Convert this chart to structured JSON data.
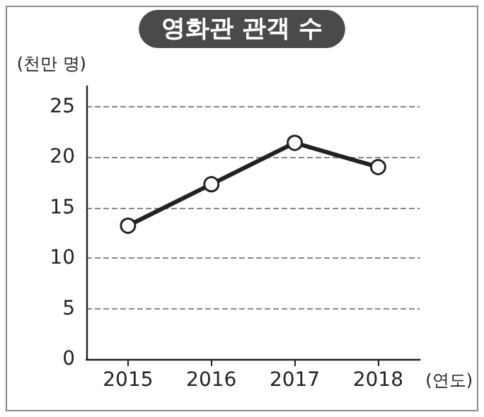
{
  "chart_data": {
    "type": "line",
    "title": "영화관 관객 수",
    "ylabel": "(천만 명)",
    "xlabel": "(연도)",
    "categories": [
      "2015",
      "2016",
      "2017",
      "2018"
    ],
    "series": [
      {
        "color": "#222222",
        "values": [
          13.2,
          17.3,
          21.4,
          19.0
        ]
      }
    ],
    "ylim": [
      0,
      27
    ],
    "yticks": [
      0,
      5,
      10,
      15,
      20,
      25
    ],
    "grid": "y",
    "marker": "circle",
    "line_style": "solid"
  }
}
